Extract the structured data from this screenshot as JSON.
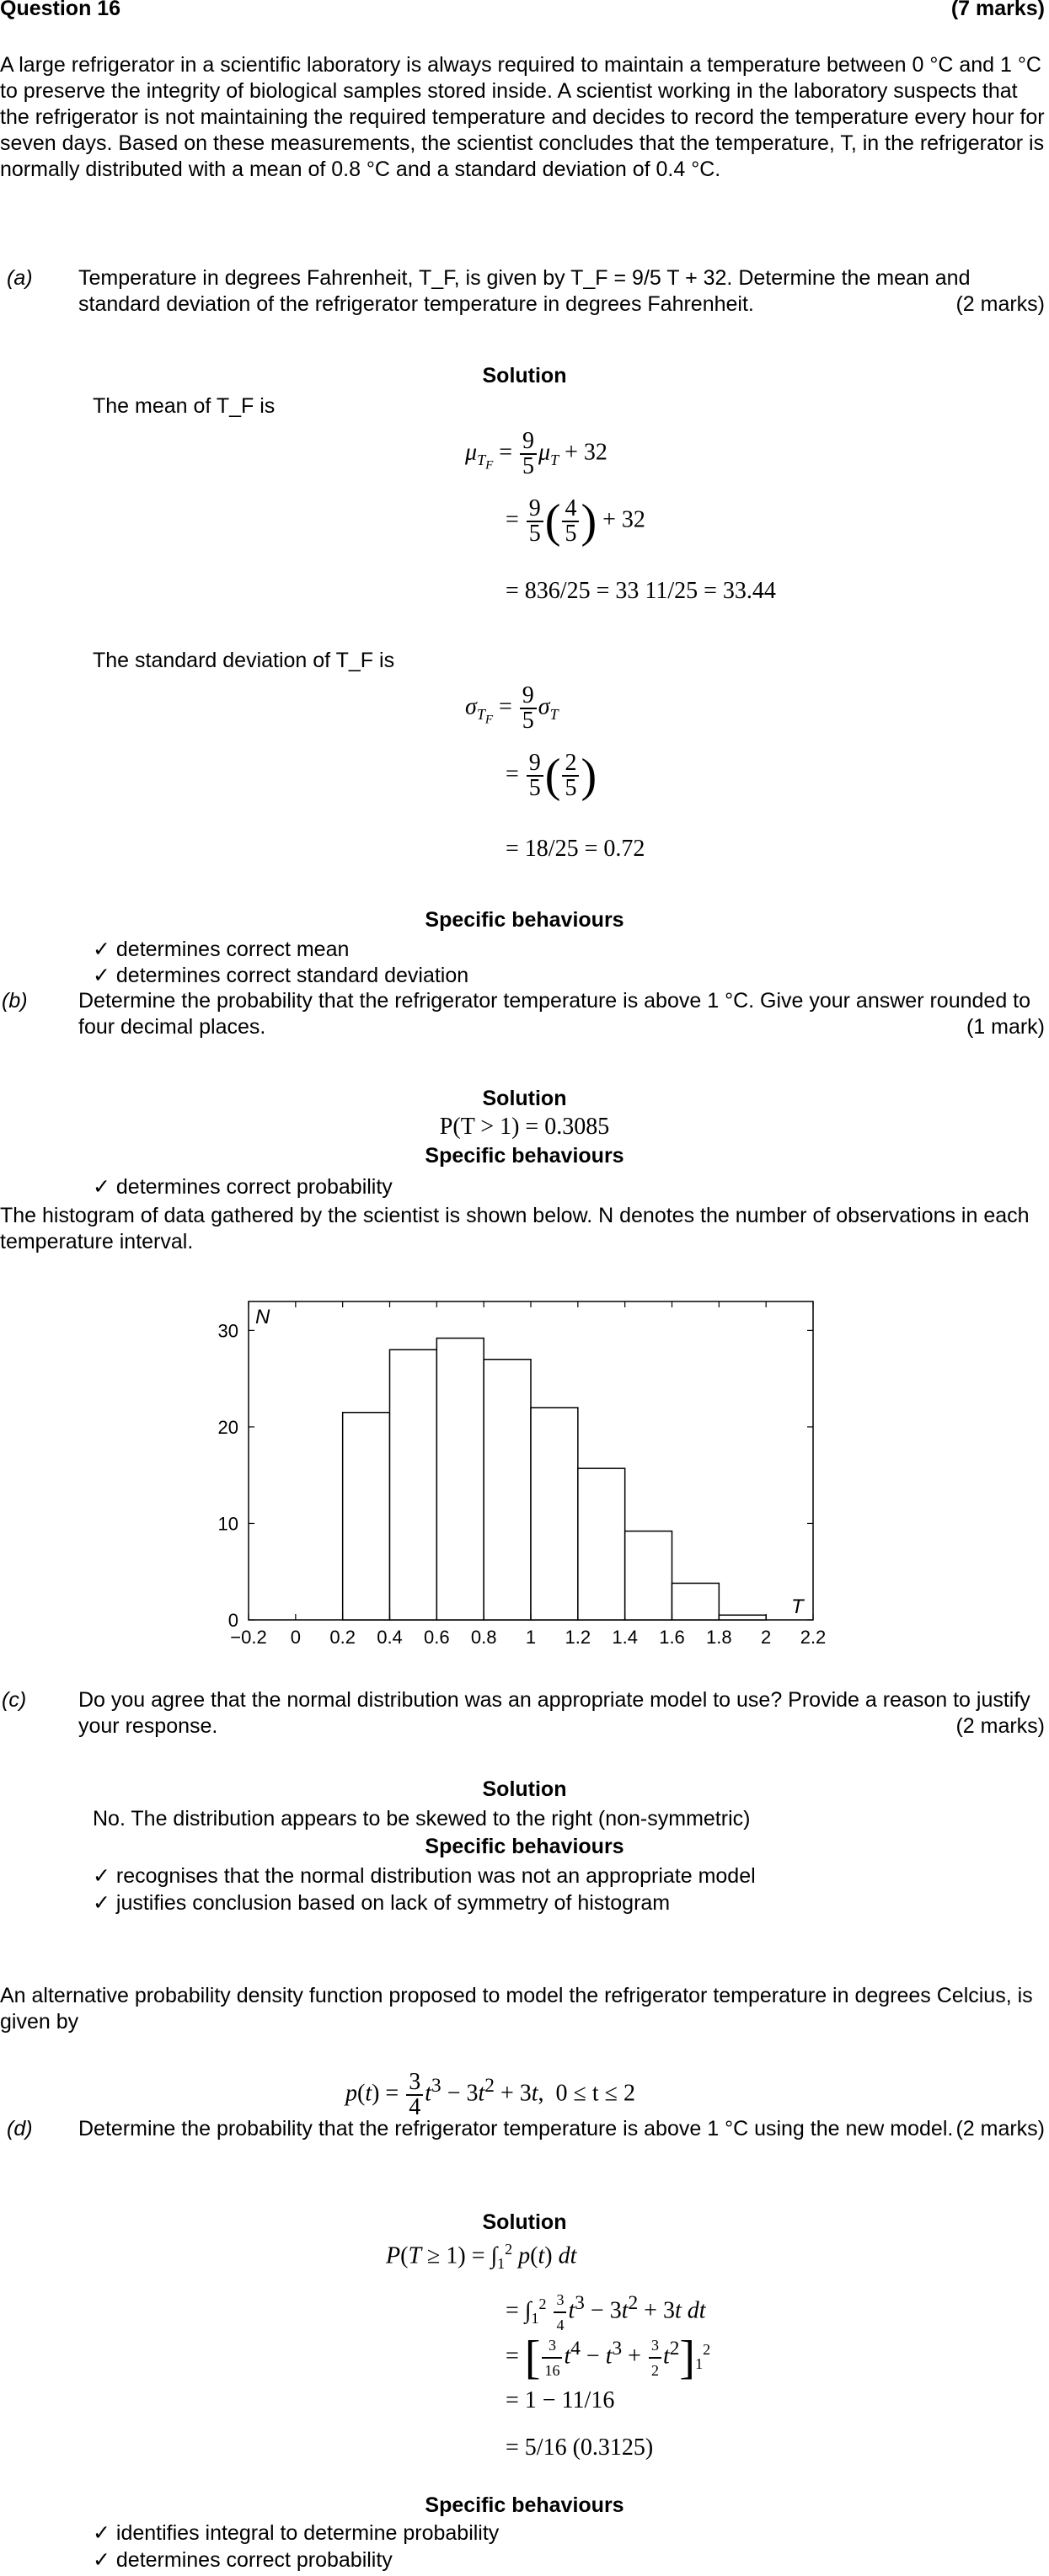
{
  "header": {
    "question": "Question 16",
    "marks": "(7 marks)"
  },
  "intro": "A large refrigerator in a scientific laboratory is always required to maintain a temperature between 0 °C and 1 °C to preserve the integrity of biological samples stored inside. A scientist working in the laboratory suspects that the refrigerator is not maintaining the required temperature and decides to record the temperature every hour for seven days. Based on these measurements, the scientist concludes that the temperature, T, in the refrigerator is normally distributed with a mean of 0.8 °C and a standard deviation of 0.4 °C.",
  "part_a": {
    "label": "(a)",
    "text": "Temperature in degrees Fahrenheit, T_F, is given by T_F = 9/5 T + 32. Determine the mean and standard deviation of the refrigerator temperature in degrees Fahrenheit.",
    "marks": "(2 marks)",
    "solution_label": "Solution",
    "mean_intro": "The mean of T_F is",
    "mean_result": "= 836/25 = 33 11/25 = 33.44",
    "sd_intro": "The standard deviation of T_F is",
    "sd_result": "= 18/25 = 0.72",
    "behaviours_label": "Specific behaviours",
    "behaviours": [
      "✓ determines correct mean",
      "✓ determines correct standard deviation"
    ]
  },
  "part_b": {
    "label": "(b)",
    "text": "Determine the probability that the refrigerator temperature is above 1 °C. Give your answer rounded to four decimal places.",
    "marks": "(1 mark)",
    "solution_label": "Solution",
    "solution": "P(T > 1) = 0.3085",
    "behaviours_label": "Specific behaviours",
    "behaviours": [
      "✓ determines correct probability"
    ]
  },
  "histogram_text": "The histogram of data gathered by the scientist is shown below. N denotes the number of observations in each temperature interval.",
  "chart_data": {
    "type": "bar",
    "xlabel": "T",
    "ylabel": "N",
    "xlim": [
      -0.2,
      2.2
    ],
    "ylim": [
      0,
      33
    ],
    "x_ticks": [
      "−0.2",
      "0",
      "0.2",
      "0.4",
      "0.6",
      "0.8",
      "1",
      "1.2",
      "1.4",
      "1.6",
      "1.8",
      "2",
      "2.2"
    ],
    "y_ticks": [
      "0",
      "10",
      "20",
      "30"
    ],
    "bins": [
      {
        "x0": 0.2,
        "x1": 0.4,
        "value": 21.5
      },
      {
        "x0": 0.4,
        "x1": 0.6,
        "value": 28
      },
      {
        "x0": 0.6,
        "x1": 0.8,
        "value": 29.2
      },
      {
        "x0": 0.8,
        "x1": 1.0,
        "value": 27
      },
      {
        "x0": 1.0,
        "x1": 1.2,
        "value": 22
      },
      {
        "x0": 1.2,
        "x1": 1.4,
        "value": 15.7
      },
      {
        "x0": 1.4,
        "x1": 1.6,
        "value": 9.2
      },
      {
        "x0": 1.6,
        "x1": 1.8,
        "value": 3.8
      },
      {
        "x0": 1.8,
        "x1": 2.0,
        "value": 0.5
      }
    ]
  },
  "part_c": {
    "label": "(c)",
    "text": "Do you agree that the normal distribution was an appropriate model to use? Provide a reason to justify your response.",
    "marks": "(2 marks)",
    "solution_label": "Solution",
    "solution": "No. The distribution appears to be skewed to the right (non-symmetric)",
    "behaviours_label": "Specific behaviours",
    "behaviours": [
      "✓ recognises that the normal distribution was not an appropriate model",
      "✓ justifies conclusion based on lack of symmetry of histogram"
    ]
  },
  "alt_text": "An alternative probability density function proposed to model the refrigerator temperature in degrees Celcius, is given by",
  "pdf_domain": "0 ≤ t ≤ 2",
  "part_d": {
    "label": "(d)",
    "text": "Determine the probability that the refrigerator temperature is above 1 °C using the new model.",
    "marks": "(2 marks)",
    "solution_label": "Solution",
    "step4": "= 1 − 11/16",
    "step5": "= 5/16 (0.3125)",
    "behaviours_label": "Specific behaviours",
    "behaviours": [
      "✓ identifies integral to determine probability",
      "✓ determines correct probability"
    ]
  }
}
